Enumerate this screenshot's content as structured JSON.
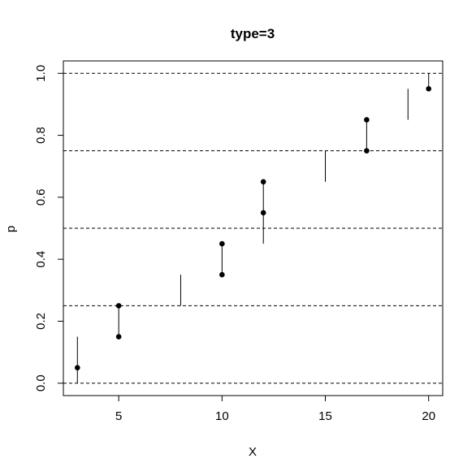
{
  "chart_data": {
    "type": "scatter",
    "title": "type=3",
    "x_label": "X",
    "y_label": "p",
    "points": {
      "x": [
        3,
        5,
        5,
        10,
        10,
        12,
        12,
        17,
        17,
        20
      ],
      "y": [
        0.05,
        0.15,
        0.25,
        0.35,
        0.45,
        0.55,
        0.65,
        0.75,
        0.85,
        0.95
      ]
    },
    "segments": [
      {
        "x": 3,
        "y0": 0,
        "y1": 0.15
      },
      {
        "x": 5,
        "y0": 0.15,
        "y1": 0.25
      },
      {
        "x": 8,
        "y0": 0.25,
        "y1": 0.35
      },
      {
        "x": 10,
        "y0": 0.35,
        "y1": 0.45
      },
      {
        "x": 12,
        "y0": 0.45,
        "y1": 0.65
      },
      {
        "x": 15,
        "y0": 0.65,
        "y1": 0.75
      },
      {
        "x": 17,
        "y0": 0.75,
        "y1": 0.85
      },
      {
        "x": 19,
        "y0": 0.85,
        "y1": 0.95
      },
      {
        "x": 20,
        "y0": 0.95,
        "y1": 1
      }
    ],
    "hlines": [
      0,
      0.25,
      0.5,
      0.75,
      1
    ],
    "color": "#000000",
    "xlim": [
      2.32,
      20.68
    ],
    "ylim": [
      -0.04,
      1.04
    ],
    "xticks": [
      5,
      10,
      15,
      20
    ],
    "yticks": [
      {
        "value": 0,
        "label": "0.0"
      },
      0.2,
      0.4,
      0.6,
      0.8,
      {
        "value": 1,
        "label": "1.0"
      }
    ]
  }
}
